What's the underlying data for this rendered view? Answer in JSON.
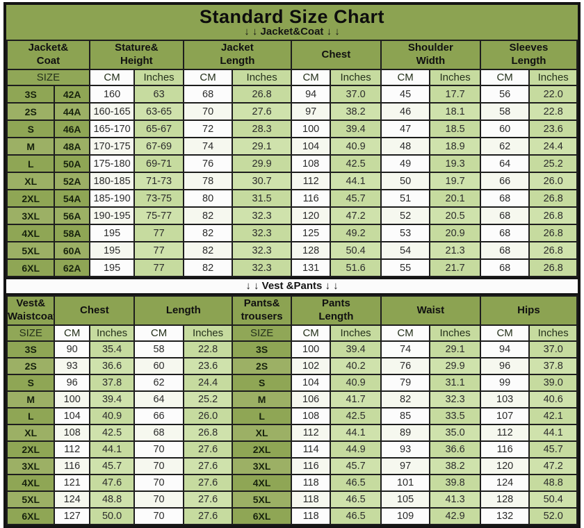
{
  "header": {
    "title": "Standard Size Chart",
    "jacket_divider": "↓ ↓  Jacket&Coat ↓ ↓",
    "vest_divider": "↓ ↓  Vest &Pants ↓ ↓"
  },
  "colors": {
    "main_green": "#8ca352",
    "size_cell_green": "#8fa655",
    "light_green": "#c6db9f",
    "white_cell": "#fcfcfc",
    "border_black": "#1d1d1d"
  },
  "chart_data": [
    {
      "type": "table",
      "title": "Jacket&Coat",
      "group_headers": [
        "Jacket&\nCoat",
        "Stature&\nHeight",
        "Jacket\nLength",
        "Chest",
        "Shoulder\nWidth",
        "Sleeves\nLength"
      ],
      "size_header": "SIZE",
      "unit_headers": [
        "CM",
        "Inches",
        "CM",
        "Inches",
        "CM",
        "Inches",
        "CM",
        "Inches",
        "CM",
        "Inches"
      ],
      "rows": [
        [
          "3S",
          "42A",
          "160",
          "63",
          "68",
          "26.8",
          "94",
          "37.0",
          "45",
          "17.7",
          "56",
          "22.0"
        ],
        [
          "2S",
          "44A",
          "160-165",
          "63-65",
          "70",
          "27.6",
          "97",
          "38.2",
          "46",
          "18.1",
          "58",
          "22.8"
        ],
        [
          "S",
          "46A",
          "165-170",
          "65-67",
          "72",
          "28.3",
          "100",
          "39.4",
          "47",
          "18.5",
          "60",
          "23.6"
        ],
        [
          "M",
          "48A",
          "170-175",
          "67-69",
          "74",
          "29.1",
          "104",
          "40.9",
          "48",
          "18.9",
          "62",
          "24.4"
        ],
        [
          "L",
          "50A",
          "175-180",
          "69-71",
          "76",
          "29.9",
          "108",
          "42.5",
          "49",
          "19.3",
          "64",
          "25.2"
        ],
        [
          "XL",
          "52A",
          "180-185",
          "71-73",
          "78",
          "30.7",
          "112",
          "44.1",
          "50",
          "19.7",
          "66",
          "26.0"
        ],
        [
          "2XL",
          "54A",
          "185-190",
          "73-75",
          "80",
          "31.5",
          "116",
          "45.7",
          "51",
          "20.1",
          "68",
          "26.8"
        ],
        [
          "3XL",
          "56A",
          "190-195",
          "75-77",
          "82",
          "32.3",
          "120",
          "47.2",
          "52",
          "20.5",
          "68",
          "26.8"
        ],
        [
          "4XL",
          "58A",
          "195",
          "77",
          "82",
          "32.3",
          "125",
          "49.2",
          "53",
          "20.9",
          "68",
          "26.8"
        ],
        [
          "5XL",
          "60A",
          "195",
          "77",
          "82",
          "32.3",
          "128",
          "50.4",
          "54",
          "21.3",
          "68",
          "26.8"
        ],
        [
          "6XL",
          "62A",
          "195",
          "77",
          "82",
          "32.3",
          "131",
          "51.6",
          "55",
          "21.7",
          "68",
          "26.8"
        ]
      ]
    },
    {
      "type": "table",
      "title": "Vest &Pants",
      "group_headers": [
        "Vest&\nWaistcoat",
        "Chest",
        "Length",
        "Pants&\ntrousers",
        "Pants\nLength",
        "Waist",
        "Hips"
      ],
      "size_header": "SIZE",
      "pants_size_header": "SIZE",
      "unit_headers": [
        "CM",
        "Inches",
        "CM",
        "Inches",
        "CM",
        "Inches",
        "CM",
        "Inches",
        "CM",
        "Inches"
      ],
      "rows": [
        [
          "3S",
          "90",
          "35.4",
          "58",
          "22.8",
          "3S",
          "100",
          "39.4",
          "74",
          "29.1",
          "94",
          "37.0"
        ],
        [
          "2S",
          "93",
          "36.6",
          "60",
          "23.6",
          "2S",
          "102",
          "40.2",
          "76",
          "29.9",
          "96",
          "37.8"
        ],
        [
          "S",
          "96",
          "37.8",
          "62",
          "24.4",
          "S",
          "104",
          "40.9",
          "79",
          "31.1",
          "99",
          "39.0"
        ],
        [
          "M",
          "100",
          "39.4",
          "64",
          "25.2",
          "M",
          "106",
          "41.7",
          "82",
          "32.3",
          "103",
          "40.6"
        ],
        [
          "L",
          "104",
          "40.9",
          "66",
          "26.0",
          "L",
          "108",
          "42.5",
          "85",
          "33.5",
          "107",
          "42.1"
        ],
        [
          "XL",
          "108",
          "42.5",
          "68",
          "26.8",
          "XL",
          "112",
          "44.1",
          "89",
          "35.0",
          "112",
          "44.1"
        ],
        [
          "2XL",
          "112",
          "44.1",
          "70",
          "27.6",
          "2XL",
          "114",
          "44.9",
          "93",
          "36.6",
          "116",
          "45.7"
        ],
        [
          "3XL",
          "116",
          "45.7",
          "70",
          "27.6",
          "3XL",
          "116",
          "45.7",
          "97",
          "38.2",
          "120",
          "47.2"
        ],
        [
          "4XL",
          "121",
          "47.6",
          "70",
          "27.6",
          "4XL",
          "118",
          "46.5",
          "101",
          "39.8",
          "124",
          "48.8"
        ],
        [
          "5XL",
          "124",
          "48.8",
          "70",
          "27.6",
          "5XL",
          "118",
          "46.5",
          "105",
          "41.3",
          "128",
          "50.4"
        ],
        [
          "6XL",
          "127",
          "50.0",
          "70",
          "27.6",
          "6XL",
          "118",
          "46.5",
          "109",
          "42.9",
          "132",
          "52.0"
        ]
      ]
    }
  ]
}
